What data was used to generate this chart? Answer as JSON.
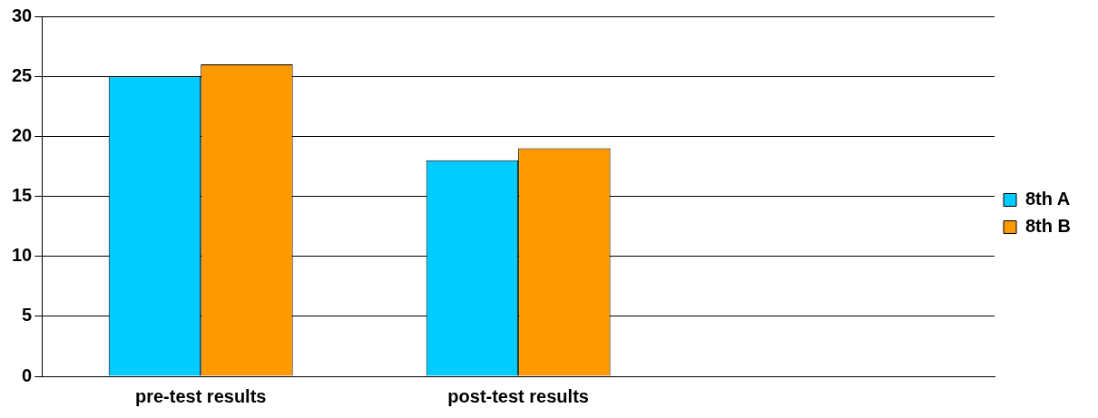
{
  "chart_data": {
    "type": "bar",
    "categories": [
      "pre-test results",
      "post-test results",
      null
    ],
    "series": [
      {
        "name": "8th A",
        "color": "#00ccff",
        "values": [
          25,
          18,
          null
        ]
      },
      {
        "name": "8th B",
        "color": "#ff9900",
        "values": [
          26,
          19,
          null
        ]
      }
    ],
    "ylim": [
      0,
      30
    ],
    "yticks": [
      0,
      5,
      10,
      15,
      20,
      25,
      30
    ],
    "grid": "y",
    "legend": "right"
  }
}
